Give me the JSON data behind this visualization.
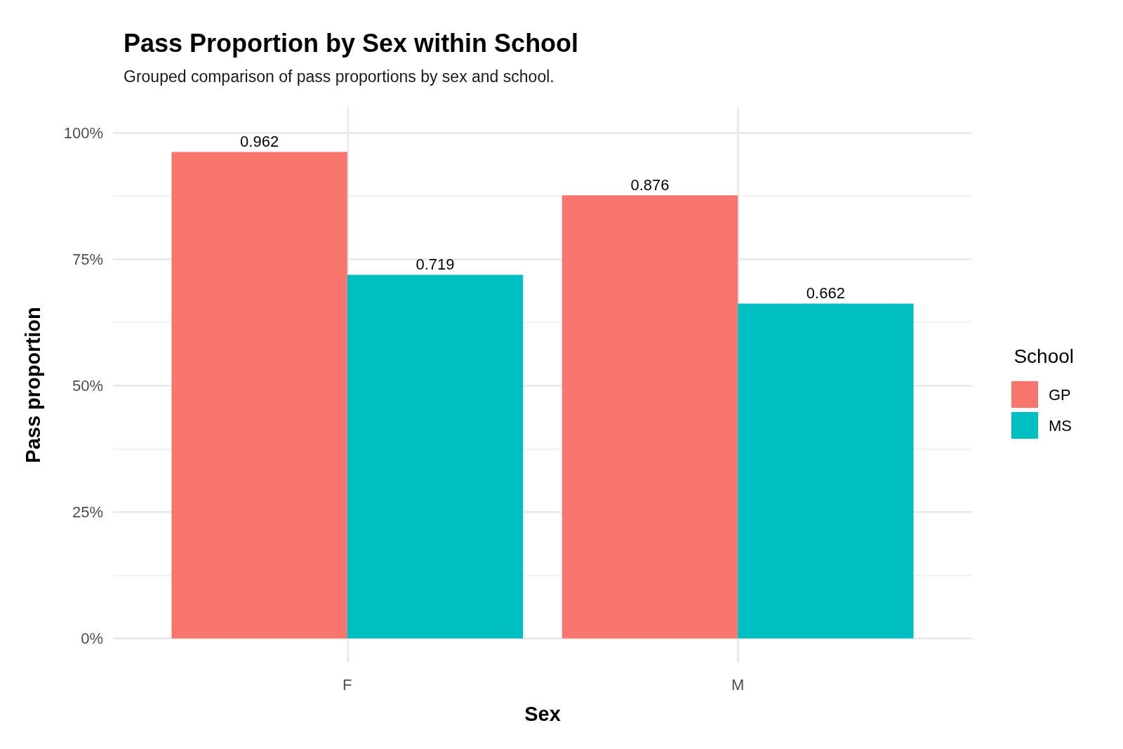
{
  "chart_data": {
    "type": "bar",
    "title": "Pass Proportion by Sex within School",
    "subtitle": "Grouped comparison of pass proportions by sex and school.",
    "xlabel": "Sex",
    "ylabel": "Pass proportion",
    "legend_title": "School",
    "categories": [
      "F",
      "M"
    ],
    "series": [
      {
        "name": "GP",
        "color": "#f8766d",
        "values": [
          0.962,
          0.876
        ]
      },
      {
        "name": "MS",
        "color": "#00bfc4",
        "values": [
          0.719,
          0.662
        ]
      }
    ],
    "ylim": [
      -0.048,
      1.05
    ],
    "yticks": [
      {
        "value": 0,
        "label": "0%"
      },
      {
        "value": 0.25,
        "label": "25%"
      },
      {
        "value": 0.5,
        "label": "50%"
      },
      {
        "value": 0.75,
        "label": "75%"
      },
      {
        "value": 1,
        "label": "100%"
      }
    ],
    "grid": true,
    "legend": "right",
    "data_labels": true
  }
}
